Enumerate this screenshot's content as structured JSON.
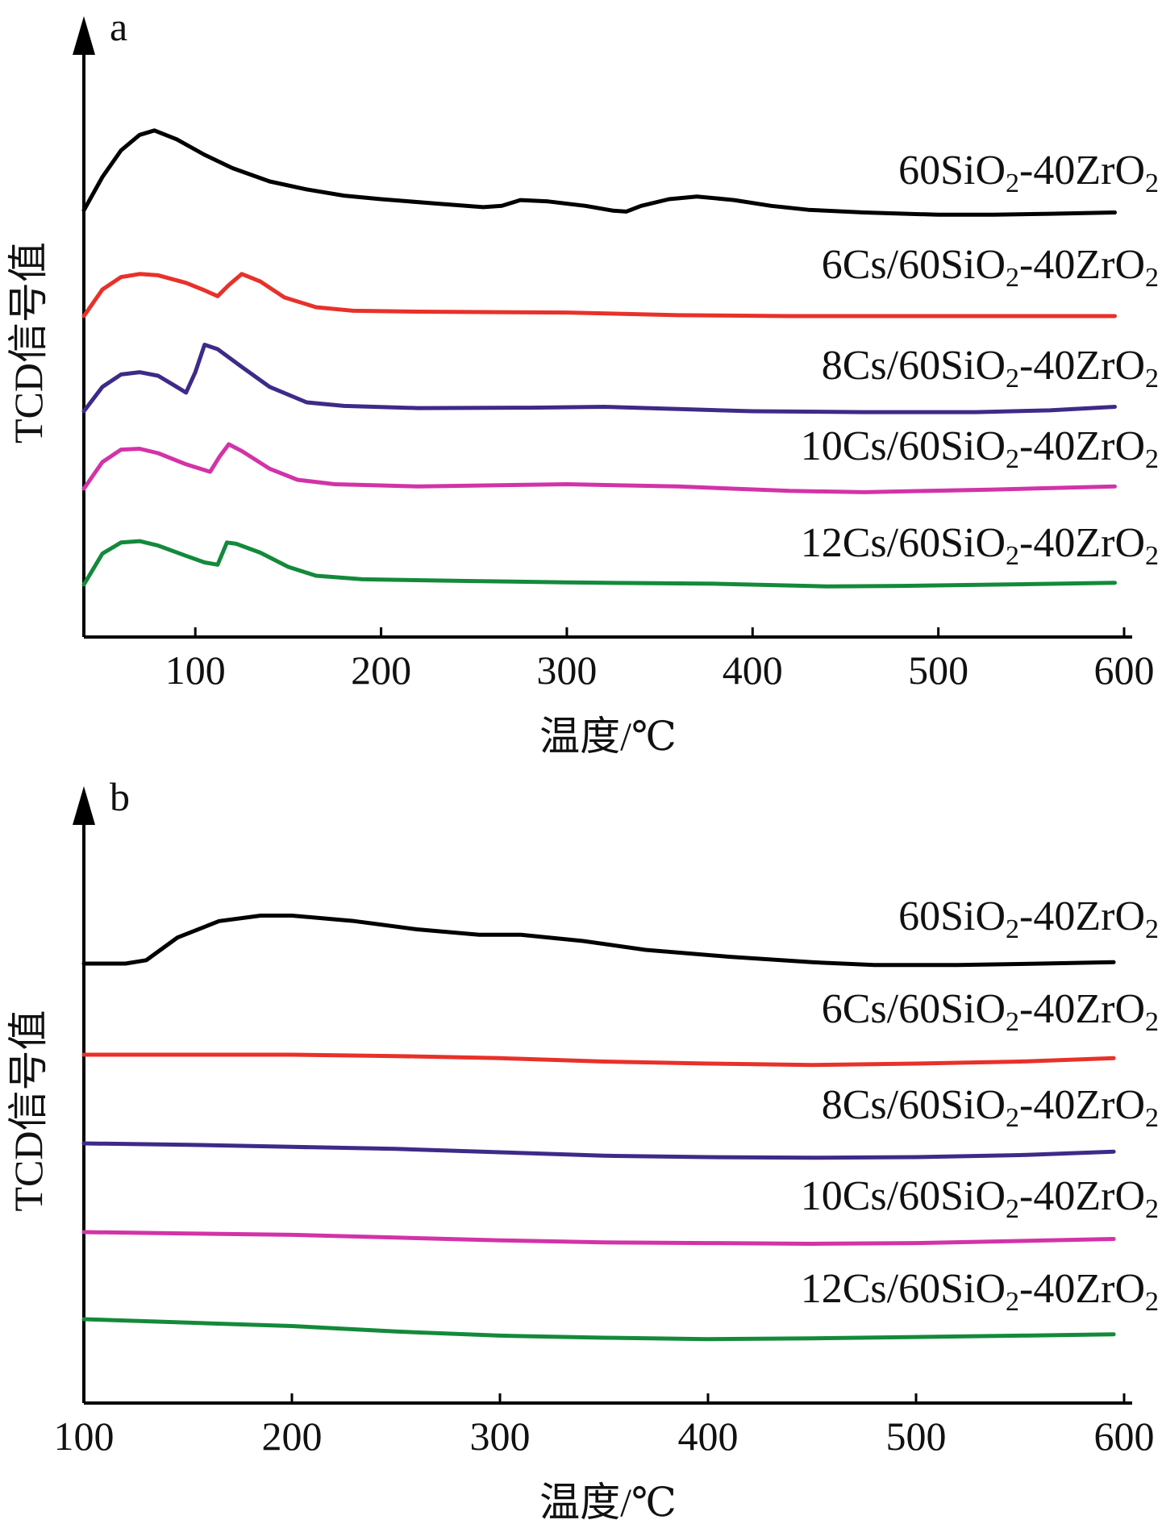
{
  "chart_data": [
    {
      "type": "line",
      "panel_label": "a",
      "xlabel": "温度/℃",
      "ylabel": "TCD信号值",
      "xlim": [
        40,
        595
      ],
      "xticks": [
        100,
        200,
        300,
        400,
        500,
        600
      ],
      "y_ticks_shown": false,
      "series": [
        {
          "name": "60SiO2-40ZrO2",
          "label_parts": [
            "60SiO",
            "2",
            "-40ZrO",
            "2"
          ],
          "color": "#000000",
          "offset": 4,
          "points": [
            [
              40,
              0.35
            ],
            [
              50,
              1.1
            ],
            [
              60,
              1.7
            ],
            [
              70,
              2.05
            ],
            [
              78,
              2.15
            ],
            [
              90,
              1.95
            ],
            [
              105,
              1.6
            ],
            [
              120,
              1.3
            ],
            [
              140,
              1.0
            ],
            [
              160,
              0.82
            ],
            [
              180,
              0.68
            ],
            [
              200,
              0.6
            ],
            [
              230,
              0.5
            ],
            [
              255,
              0.42
            ],
            [
              265,
              0.45
            ],
            [
              275,
              0.58
            ],
            [
              290,
              0.55
            ],
            [
              310,
              0.45
            ],
            [
              325,
              0.34
            ],
            [
              332,
              0.32
            ],
            [
              340,
              0.45
            ],
            [
              355,
              0.6
            ],
            [
              370,
              0.66
            ],
            [
              390,
              0.58
            ],
            [
              410,
              0.45
            ],
            [
              430,
              0.36
            ],
            [
              460,
              0.3
            ],
            [
              500,
              0.25
            ],
            [
              530,
              0.25
            ],
            [
              560,
              0.27
            ],
            [
              595,
              0.3
            ]
          ]
        },
        {
          "name": "6Cs/60SiO2-40ZrO2",
          "label_parts": [
            "6Cs/60SiO",
            "2",
            "-40ZrO",
            "2"
          ],
          "color": "#e8312a",
          "offset": 3,
          "points": [
            [
              40,
              0.0
            ],
            [
              50,
              0.6
            ],
            [
              60,
              0.88
            ],
            [
              70,
              0.95
            ],
            [
              80,
              0.92
            ],
            [
              95,
              0.75
            ],
            [
              105,
              0.58
            ],
            [
              112,
              0.45
            ],
            [
              118,
              0.7
            ],
            [
              125,
              0.95
            ],
            [
              135,
              0.78
            ],
            [
              148,
              0.42
            ],
            [
              165,
              0.2
            ],
            [
              185,
              0.12
            ],
            [
              220,
              0.1
            ],
            [
              300,
              0.08
            ],
            [
              360,
              0.02
            ],
            [
              420,
              0.0
            ],
            [
              500,
              0.0
            ],
            [
              595,
              0.0
            ]
          ]
        },
        {
          "name": "8Cs/60SiO2-40ZrO2",
          "label_parts": [
            "8Cs/60SiO",
            "2",
            "-40ZrO",
            "2"
          ],
          "color": "#3e2a88",
          "offset": 2,
          "points": [
            [
              40,
              0.0
            ],
            [
              50,
              0.55
            ],
            [
              60,
              0.83
            ],
            [
              70,
              0.88
            ],
            [
              80,
              0.8
            ],
            [
              90,
              0.55
            ],
            [
              95,
              0.42
            ],
            [
              100,
              0.88
            ],
            [
              105,
              1.5
            ],
            [
              112,
              1.4
            ],
            [
              125,
              1.0
            ],
            [
              140,
              0.55
            ],
            [
              160,
              0.2
            ],
            [
              180,
              0.12
            ],
            [
              220,
              0.07
            ],
            [
              280,
              0.08
            ],
            [
              320,
              0.1
            ],
            [
              360,
              0.05
            ],
            [
              400,
              0.0
            ],
            [
              460,
              -0.02
            ],
            [
              520,
              -0.02
            ],
            [
              560,
              0.02
            ],
            [
              595,
              0.1
            ]
          ]
        },
        {
          "name": "10Cs/60SiO2-40ZrO2",
          "label_parts": [
            "10Cs/60SiO",
            "2",
            "-40ZrO",
            "2"
          ],
          "color": "#d233a8",
          "offset": 1,
          "points": [
            [
              40,
              0.0
            ],
            [
              50,
              0.6
            ],
            [
              60,
              0.88
            ],
            [
              70,
              0.9
            ],
            [
              80,
              0.8
            ],
            [
              95,
              0.55
            ],
            [
              108,
              0.38
            ],
            [
              113,
              0.72
            ],
            [
              118,
              1.0
            ],
            [
              125,
              0.85
            ],
            [
              140,
              0.45
            ],
            [
              155,
              0.2
            ],
            [
              175,
              0.1
            ],
            [
              220,
              0.05
            ],
            [
              300,
              0.1
            ],
            [
              360,
              0.05
            ],
            [
              420,
              -0.05
            ],
            [
              460,
              -0.08
            ],
            [
              530,
              -0.02
            ],
            [
              595,
              0.05
            ]
          ]
        },
        {
          "name": "12Cs/60SiO2-40ZrO2",
          "label_parts": [
            "12Cs/60SiO",
            "2",
            "-40ZrO",
            "2"
          ],
          "color": "#138a3a",
          "offset": 0,
          "points": [
            [
              40,
              0.0
            ],
            [
              50,
              0.7
            ],
            [
              60,
              0.95
            ],
            [
              70,
              0.98
            ],
            [
              80,
              0.88
            ],
            [
              95,
              0.65
            ],
            [
              105,
              0.5
            ],
            [
              112,
              0.45
            ],
            [
              117,
              0.95
            ],
            [
              122,
              0.92
            ],
            [
              135,
              0.72
            ],
            [
              150,
              0.4
            ],
            [
              165,
              0.2
            ],
            [
              190,
              0.12
            ],
            [
              250,
              0.08
            ],
            [
              300,
              0.05
            ],
            [
              380,
              0.02
            ],
            [
              440,
              -0.04
            ],
            [
              480,
              -0.03
            ],
            [
              530,
              0.0
            ],
            [
              595,
              0.04
            ]
          ]
        }
      ]
    },
    {
      "type": "line",
      "panel_label": "b",
      "xlabel": "温度/℃",
      "ylabel": "TCD信号值",
      "xlim": [
        100,
        595
      ],
      "xticks": [
        100,
        200,
        300,
        400,
        500,
        600
      ],
      "y_ticks_shown": false,
      "series": [
        {
          "name": "60SiO2-40ZrO2",
          "label_parts": [
            "60SiO",
            "2",
            "-40ZrO",
            "2"
          ],
          "color": "#000000",
          "offset": 4,
          "points": [
            [
              100,
              0.0
            ],
            [
              120,
              0.0
            ],
            [
              130,
              0.05
            ],
            [
              145,
              0.38
            ],
            [
              165,
              0.62
            ],
            [
              185,
              0.7
            ],
            [
              200,
              0.7
            ],
            [
              230,
              0.62
            ],
            [
              260,
              0.5
            ],
            [
              290,
              0.42
            ],
            [
              310,
              0.42
            ],
            [
              340,
              0.33
            ],
            [
              370,
              0.2
            ],
            [
              410,
              0.1
            ],
            [
              450,
              0.02
            ],
            [
              480,
              -0.02
            ],
            [
              520,
              -0.02
            ],
            [
              560,
              0.0
            ],
            [
              595,
              0.02
            ]
          ]
        },
        {
          "name": "6Cs/60SiO2-40ZrO2",
          "label_parts": [
            "6Cs/60SiO",
            "2",
            "-40ZrO",
            "2"
          ],
          "color": "#e8312a",
          "offset": 3,
          "points": [
            [
              100,
              0.0
            ],
            [
              150,
              0.0
            ],
            [
              200,
              0.0
            ],
            [
              250,
              -0.02
            ],
            [
              300,
              -0.05
            ],
            [
              350,
              -0.1
            ],
            [
              400,
              -0.13
            ],
            [
              450,
              -0.15
            ],
            [
              500,
              -0.13
            ],
            [
              550,
              -0.1
            ],
            [
              595,
              -0.05
            ]
          ]
        },
        {
          "name": "8Cs/60SiO2-40ZrO2",
          "label_parts": [
            "8Cs/60SiO",
            "2",
            "-40ZrO",
            "2"
          ],
          "color": "#3e2a88",
          "offset": 2,
          "points": [
            [
              100,
              0.0
            ],
            [
              150,
              -0.02
            ],
            [
              200,
              -0.05
            ],
            [
              250,
              -0.08
            ],
            [
              300,
              -0.13
            ],
            [
              350,
              -0.18
            ],
            [
              400,
              -0.2
            ],
            [
              450,
              -0.21
            ],
            [
              500,
              -0.2
            ],
            [
              550,
              -0.17
            ],
            [
              595,
              -0.12
            ]
          ]
        },
        {
          "name": "10Cs/60SiO2-40ZrO2",
          "label_parts": [
            "10Cs/60SiO",
            "2",
            "-40ZrO",
            "2"
          ],
          "color": "#d233a8",
          "offset": 1,
          "points": [
            [
              100,
              0.0
            ],
            [
              150,
              -0.02
            ],
            [
              200,
              -0.04
            ],
            [
              250,
              -0.08
            ],
            [
              300,
              -0.12
            ],
            [
              350,
              -0.15
            ],
            [
              400,
              -0.16
            ],
            [
              450,
              -0.17
            ],
            [
              500,
              -0.16
            ],
            [
              550,
              -0.13
            ],
            [
              595,
              -0.1
            ]
          ]
        },
        {
          "name": "12Cs/60SiO2-40ZrO2",
          "label_parts": [
            "12Cs/60SiO",
            "2",
            "-40ZrO",
            "2"
          ],
          "color": "#138a3a",
          "offset": 0,
          "points": [
            [
              100,
              0.0
            ],
            [
              150,
              -0.05
            ],
            [
              200,
              -0.1
            ],
            [
              250,
              -0.18
            ],
            [
              300,
              -0.24
            ],
            [
              350,
              -0.27
            ],
            [
              400,
              -0.29
            ],
            [
              450,
              -0.28
            ],
            [
              500,
              -0.26
            ],
            [
              550,
              -0.24
            ],
            [
              595,
              -0.22
            ]
          ]
        }
      ]
    }
  ]
}
